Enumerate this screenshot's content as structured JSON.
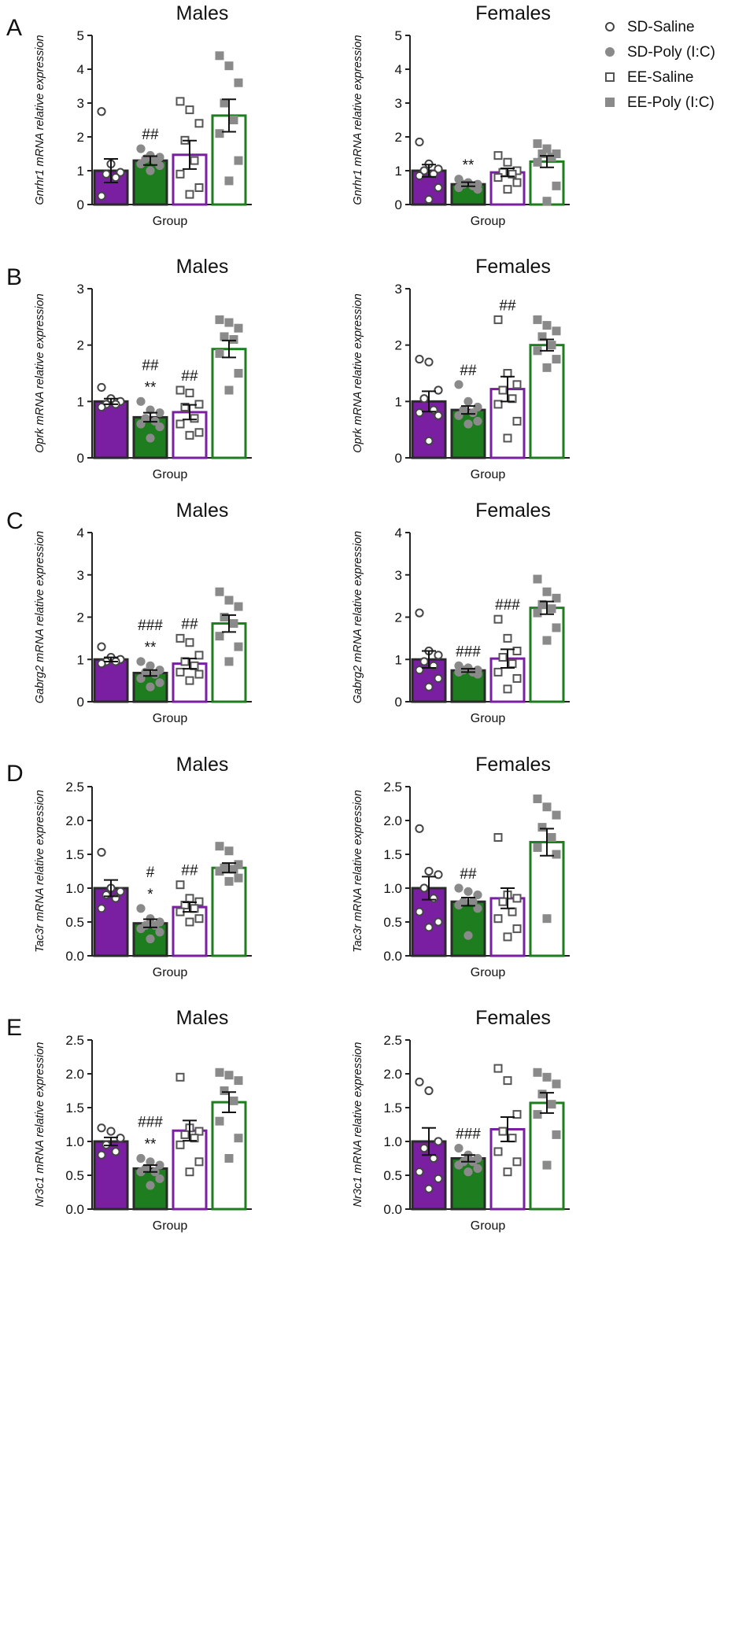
{
  "legend": {
    "items": [
      {
        "label": "SD-Saline",
        "marker": "open-circle",
        "color": "#7a1fa2"
      },
      {
        "label": "SD-Poly (I:C)",
        "marker": "filled-circle",
        "color": "#1e7d1e"
      },
      {
        "label": "EE-Saline",
        "marker": "open-square",
        "color": "#7a1fa2"
      },
      {
        "label": "EE-Poly (I:C)",
        "marker": "filled-square",
        "color": "#1e7d1e"
      }
    ]
  },
  "chart_data": [
    {
      "panel": "A",
      "type": "bar",
      "title": "Males",
      "xlabel": "Group",
      "ylabel_gene": "Gnrhr1",
      "ylabel_rest": " mRNA relative expression",
      "ylim": [
        0,
        5
      ],
      "yticks": [
        "0",
        "1",
        "2",
        "3",
        "4",
        "5"
      ],
      "tickvals": [
        0,
        1,
        2,
        3,
        4,
        5
      ],
      "categories": [
        "SD-Saline",
        "SD-Poly (I:C)",
        "EE-Saline",
        "EE-Poly (I:C)"
      ],
      "values": [
        1.0,
        1.3,
        1.47,
        2.63
      ],
      "sem": [
        0.35,
        0.13,
        0.42,
        0.48
      ],
      "points": [
        [
          2.75,
          1.2,
          0.95,
          0.9,
          0.8,
          0.25
        ],
        [
          1.65,
          1.45,
          1.4,
          1.35,
          1.3,
          1.2,
          1.15,
          1.0
        ],
        [
          3.05,
          2.8,
          2.4,
          1.9,
          1.3,
          0.9,
          0.5,
          0.3
        ],
        [
          4.4,
          4.1,
          3.6,
          3.0,
          2.5,
          2.1,
          1.3,
          0.7
        ]
      ],
      "annotations": [
        [],
        [
          "##"
        ],
        [],
        []
      ]
    },
    {
      "panel": "A",
      "type": "bar",
      "title": "Females",
      "xlabel": "Group",
      "ylabel_gene": "Gnrhr1",
      "ylabel_rest": " mRNA relative expression",
      "ylim": [
        0,
        5
      ],
      "yticks": [
        "0",
        "1",
        "2",
        "3",
        "4",
        "5"
      ],
      "tickvals": [
        0,
        1,
        2,
        3,
        4,
        5
      ],
      "categories": [
        "SD-Saline",
        "SD-Poly (I:C)",
        "EE-Saline",
        "EE-Poly (I:C)"
      ],
      "values": [
        1.0,
        0.6,
        0.95,
        1.27
      ],
      "sem": [
        0.18,
        0.06,
        0.12,
        0.17
      ],
      "points": [
        [
          1.85,
          1.2,
          1.05,
          1.0,
          0.9,
          0.85,
          0.5,
          0.15
        ],
        [
          0.75,
          0.65,
          0.6,
          0.6,
          0.55,
          0.5,
          0.45
        ],
        [
          1.45,
          1.25,
          1.0,
          0.95,
          0.9,
          0.8,
          0.65,
          0.45
        ],
        [
          1.8,
          1.65,
          1.5,
          1.5,
          1.4,
          1.25,
          0.55,
          0.1
        ]
      ],
      "annotations": [
        [],
        [
          "**"
        ],
        [],
        []
      ]
    },
    {
      "panel": "B",
      "type": "bar",
      "title": "Males",
      "xlabel": "Group",
      "ylabel_gene": "Oprk",
      "ylabel_rest": " mRNA relative expression",
      "ylim": [
        0,
        3
      ],
      "yticks": [
        "0",
        "1",
        "2",
        "3"
      ],
      "tickvals": [
        0,
        1,
        2,
        3
      ],
      "categories": [
        "SD-Saline",
        "SD-Poly (I:C)",
        "EE-Saline",
        "EE-Poly (I:C)"
      ],
      "values": [
        1.0,
        0.72,
        0.81,
        1.93
      ],
      "sem": [
        0.05,
        0.08,
        0.13,
        0.15
      ],
      "points": [
        [
          1.25,
          1.05,
          1.0,
          0.95,
          0.95,
          0.9
        ],
        [
          1.0,
          0.85,
          0.8,
          0.7,
          0.65,
          0.6,
          0.55,
          0.35
        ],
        [
          1.2,
          1.15,
          0.95,
          0.9,
          0.7,
          0.6,
          0.45,
          0.4
        ],
        [
          2.45,
          2.4,
          2.3,
          2.15,
          2.1,
          1.85,
          1.5,
          1.2
        ]
      ],
      "annotations": [
        [],
        [
          "**",
          "##"
        ],
        [
          "##"
        ],
        []
      ]
    },
    {
      "panel": "B",
      "type": "bar",
      "title": "Females",
      "xlabel": "Group",
      "ylabel_gene": "Oprk",
      "ylabel_rest": " mRNA relative expression",
      "ylim": [
        0,
        3
      ],
      "yticks": [
        "0",
        "1",
        "2",
        "3"
      ],
      "tickvals": [
        0,
        1,
        2,
        3
      ],
      "categories": [
        "SD-Saline",
        "SD-Poly (I:C)",
        "EE-Saline",
        "EE-Poly (I:C)"
      ],
      "values": [
        1.0,
        0.85,
        1.22,
        2.0
      ],
      "sem": [
        0.18,
        0.07,
        0.22,
        0.1
      ],
      "points": [
        [
          1.75,
          1.7,
          1.2,
          1.05,
          0.85,
          0.8,
          0.75,
          0.3
        ],
        [
          1.3,
          1.0,
          0.9,
          0.85,
          0.8,
          0.75,
          0.65,
          0.6
        ],
        [
          2.45,
          1.5,
          1.3,
          1.2,
          1.05,
          0.95,
          0.65,
          0.35
        ],
        [
          2.45,
          2.35,
          2.25,
          2.15,
          2.0,
          1.9,
          1.75,
          1.6
        ]
      ],
      "annotations": [
        [],
        [
          "##"
        ],
        [
          "##"
        ],
        []
      ]
    },
    {
      "panel": "C",
      "type": "bar",
      "title": "Males",
      "xlabel": "Group",
      "ylabel_gene": "Gabrg2",
      "ylabel_rest": " mRNA relative expression",
      "ylim": [
        0,
        4
      ],
      "yticks": [
        "0",
        "1",
        "2",
        "3",
        "4"
      ],
      "tickvals": [
        0,
        1,
        2,
        3,
        4
      ],
      "categories": [
        "SD-Saline",
        "SD-Poly (I:C)",
        "EE-Saline",
        "EE-Poly (I:C)"
      ],
      "values": [
        1.0,
        0.68,
        0.9,
        1.85
      ],
      "sem": [
        0.05,
        0.07,
        0.12,
        0.2
      ],
      "points": [
        [
          1.3,
          1.05,
          1.0,
          0.95,
          0.95,
          0.9
        ],
        [
          0.95,
          0.85,
          0.75,
          0.7,
          0.65,
          0.55,
          0.45,
          0.35
        ],
        [
          1.5,
          1.4,
          1.1,
          0.95,
          0.85,
          0.7,
          0.65,
          0.5
        ],
        [
          2.6,
          2.4,
          2.25,
          2.0,
          1.85,
          1.55,
          1.3,
          0.95
        ]
      ],
      "annotations": [
        [],
        [
          "**",
          "###"
        ],
        [
          "##"
        ],
        []
      ]
    },
    {
      "panel": "C",
      "type": "bar",
      "title": "Females",
      "xlabel": "Group",
      "ylabel_gene": "Gabrg2",
      "ylabel_rest": " mRNA relative expression",
      "ylim": [
        0,
        4
      ],
      "yticks": [
        "0",
        "1",
        "2",
        "3",
        "4"
      ],
      "tickvals": [
        0,
        1,
        2,
        3,
        4
      ],
      "categories": [
        "SD-Saline",
        "SD-Poly (I:C)",
        "EE-Saline",
        "EE-Poly (I:C)"
      ],
      "values": [
        1.0,
        0.74,
        1.02,
        2.22
      ],
      "sem": [
        0.2,
        0.04,
        0.22,
        0.15
      ],
      "points": [
        [
          2.1,
          1.2,
          1.1,
          0.95,
          0.85,
          0.75,
          0.55,
          0.35
        ],
        [
          0.85,
          0.8,
          0.75,
          0.75,
          0.7,
          0.7,
          0.65
        ],
        [
          1.95,
          1.5,
          1.2,
          1.05,
          0.9,
          0.7,
          0.55,
          0.3
        ],
        [
          2.9,
          2.6,
          2.45,
          2.3,
          2.2,
          2.1,
          1.75,
          1.45
        ]
      ],
      "annotations": [
        [],
        [
          "###"
        ],
        [
          "###"
        ],
        []
      ]
    },
    {
      "panel": "D",
      "type": "bar",
      "title": "Males",
      "xlabel": "Group",
      "ylabel_gene": "Tac3r",
      "ylabel_rest": " mRNA relative expression",
      "ylim": [
        0,
        2.5
      ],
      "yticks": [
        "0.0",
        "0.5",
        "1.0",
        "1.5",
        "2.0",
        "2.5"
      ],
      "tickvals": [
        0,
        0.5,
        1,
        1.5,
        2,
        2.5
      ],
      "categories": [
        "SD-Saline",
        "SD-Poly (I:C)",
        "EE-Saline",
        "EE-Poly (I:C)"
      ],
      "values": [
        1.0,
        0.48,
        0.72,
        1.3
      ],
      "sem": [
        0.12,
        0.06,
        0.07,
        0.07
      ],
      "points": [
        [
          1.53,
          1.0,
          0.95,
          0.9,
          0.85,
          0.7
        ],
        [
          0.7,
          0.55,
          0.5,
          0.45,
          0.45,
          0.4,
          0.35,
          0.25
        ],
        [
          1.05,
          0.85,
          0.8,
          0.75,
          0.7,
          0.65,
          0.55,
          0.5
        ],
        [
          1.62,
          1.55,
          1.35,
          1.3,
          1.28,
          1.25,
          1.15,
          1.1
        ]
      ],
      "annotations": [
        [],
        [
          "*",
          "#"
        ],
        [
          "##"
        ],
        []
      ]
    },
    {
      "panel": "D",
      "type": "bar",
      "title": "Females",
      "xlabel": "Group",
      "ylabel_gene": "Tac3r",
      "ylabel_rest": " mRNA relative expression",
      "ylim": [
        0,
        2.5
      ],
      "yticks": [
        "0.0",
        "0.5",
        "1.0",
        "1.5",
        "2.0",
        "2.5"
      ],
      "tickvals": [
        0,
        0.5,
        1,
        1.5,
        2,
        2.5
      ],
      "categories": [
        "SD-Saline",
        "SD-Poly (I:C)",
        "EE-Saline",
        "EE-Poly (I:C)"
      ],
      "values": [
        1.0,
        0.8,
        0.85,
        1.68
      ],
      "sem": [
        0.17,
        0.06,
        0.15,
        0.2
      ],
      "points": [
        [
          1.88,
          1.25,
          1.2,
          1.0,
          0.85,
          0.65,
          0.5,
          0.42
        ],
        [
          1.0,
          0.95,
          0.9,
          0.8,
          0.8,
          0.75,
          0.7,
          0.3
        ],
        [
          1.75,
          0.9,
          0.85,
          0.8,
          0.65,
          0.55,
          0.4,
          0.28
        ],
        [
          2.32,
          2.2,
          2.08,
          1.9,
          1.75,
          1.6,
          1.5,
          0.55
        ]
      ],
      "annotations": [
        [],
        [
          "##"
        ],
        [],
        []
      ]
    },
    {
      "panel": "E",
      "type": "bar",
      "title": "Males",
      "xlabel": "Group",
      "ylabel_gene": "Nr3c1",
      "ylabel_rest": " mRNA relative expression",
      "ylim": [
        0,
        2.5
      ],
      "yticks": [
        "0.0",
        "0.5",
        "1.0",
        "1.5",
        "2.0",
        "2.5"
      ],
      "tickvals": [
        0,
        0.5,
        1,
        1.5,
        2,
        2.5
      ],
      "categories": [
        "SD-Saline",
        "SD-Poly (I:C)",
        "EE-Saline",
        "EE-Poly (I:C)"
      ],
      "values": [
        1.0,
        0.6,
        1.16,
        1.58
      ],
      "sem": [
        0.06,
        0.05,
        0.15,
        0.15
      ],
      "points": [
        [
          1.2,
          1.15,
          1.05,
          0.95,
          0.85,
          0.8
        ],
        [
          0.75,
          0.7,
          0.65,
          0.6,
          0.55,
          0.55,
          0.45,
          0.35
        ],
        [
          1.95,
          1.2,
          1.15,
          1.1,
          1.05,
          0.95,
          0.7,
          0.55
        ],
        [
          2.02,
          1.98,
          1.9,
          1.75,
          1.6,
          1.3,
          1.05,
          0.75
        ]
      ],
      "annotations": [
        [],
        [
          "**",
          "###"
        ],
        [],
        []
      ]
    },
    {
      "panel": "E",
      "type": "bar",
      "title": "Females",
      "xlabel": "Group",
      "ylabel_gene": "Nr3c1",
      "ylabel_rest": " mRNA relative expression",
      "ylim": [
        0,
        2.5
      ],
      "yticks": [
        "0.0",
        "0.5",
        "1.0",
        "1.5",
        "2.0",
        "2.5"
      ],
      "tickvals": [
        0,
        0.5,
        1,
        1.5,
        2,
        2.5
      ],
      "categories": [
        "SD-Saline",
        "SD-Poly (I:C)",
        "EE-Saline",
        "EE-Poly (I:C)"
      ],
      "values": [
        1.0,
        0.75,
        1.18,
        1.57
      ],
      "sem": [
        0.2,
        0.05,
        0.18,
        0.15
      ],
      "points": [
        [
          1.88,
          1.75,
          1.0,
          0.9,
          0.75,
          0.55,
          0.45,
          0.3
        ],
        [
          0.9,
          0.8,
          0.75,
          0.7,
          0.7,
          0.65,
          0.6,
          0.55
        ],
        [
          2.08,
          1.9,
          1.4,
          1.15,
          1.05,
          0.85,
          0.7,
          0.55
        ],
        [
          2.02,
          1.95,
          1.85,
          1.7,
          1.55,
          1.4,
          1.1,
          0.65
        ]
      ],
      "annotations": [
        [],
        [
          "###"
        ],
        [],
        []
      ]
    }
  ]
}
